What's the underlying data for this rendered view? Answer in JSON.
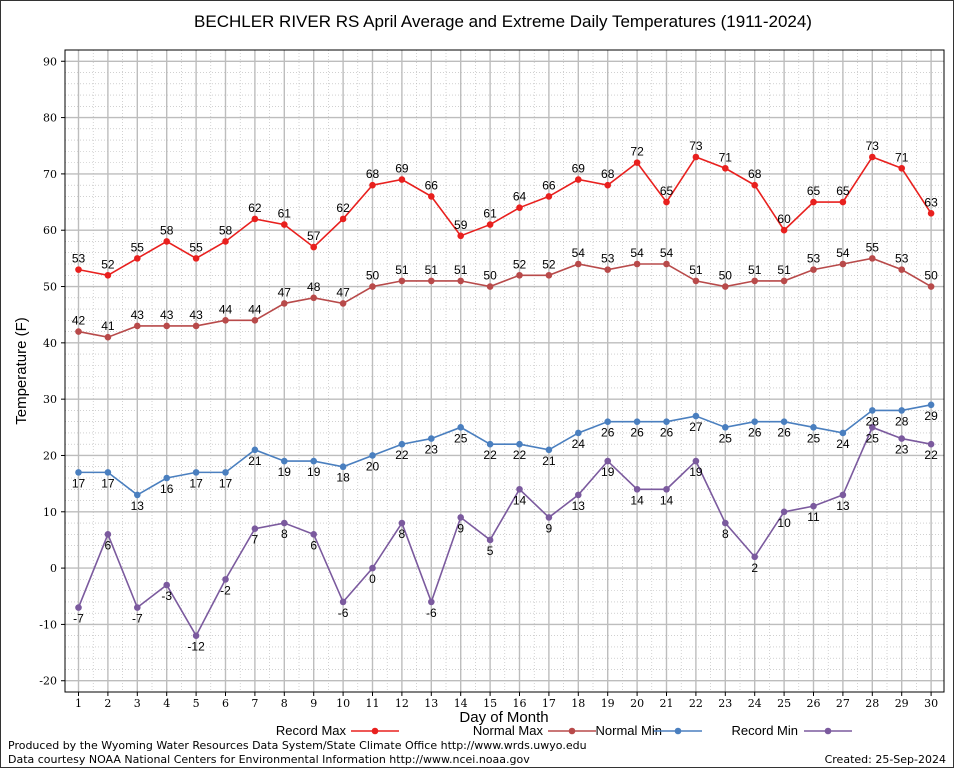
{
  "chart_data": {
    "type": "line",
    "title": "BECHLER RIVER RS April Average and Extreme Daily Temperatures (1911-2024)",
    "xlabel": "Day of Month",
    "ylabel": "Temperature (F)",
    "x": [
      1,
      2,
      3,
      4,
      5,
      6,
      7,
      8,
      9,
      10,
      11,
      12,
      13,
      14,
      15,
      16,
      17,
      18,
      19,
      20,
      21,
      22,
      23,
      24,
      25,
      26,
      27,
      28,
      29,
      30
    ],
    "ylim": [
      -22,
      92
    ],
    "yticks": [
      -20,
      -10,
      0,
      10,
      20,
      30,
      40,
      50,
      60,
      70,
      80,
      90
    ],
    "grid": true,
    "legend_position": "bottom",
    "series": [
      {
        "name": "Record Max",
        "color": "#e8201e",
        "values": [
          53,
          52,
          55,
          58,
          55,
          58,
          62,
          61,
          57,
          62,
          68,
          69,
          66,
          59,
          61,
          64,
          66,
          69,
          68,
          72,
          65,
          73,
          71,
          68,
          60,
          65,
          65,
          73,
          71,
          63
        ]
      },
      {
        "name": "Normal Max",
        "color": "#b84a4a",
        "values": [
          42,
          41,
          43,
          43,
          43,
          44,
          44,
          47,
          48,
          47,
          50,
          51,
          51,
          51,
          50,
          52,
          52,
          54,
          53,
          54,
          54,
          51,
          50,
          51,
          51,
          53,
          54,
          55,
          53,
          50
        ]
      },
      {
        "name": "Normal Min",
        "color": "#4a7fbf",
        "values": [
          17,
          17,
          13,
          16,
          17,
          17,
          21,
          19,
          19,
          18,
          20,
          22,
          23,
          25,
          22,
          22,
          21,
          24,
          26,
          26,
          26,
          27,
          25,
          26,
          26,
          25,
          24,
          28,
          28,
          29
        ]
      },
      {
        "name": "Record Min",
        "color": "#7b5a9e",
        "values": [
          -7,
          6,
          -7,
          -3,
          -12,
          -2,
          7,
          8,
          6,
          -6,
          0,
          8,
          -6,
          9,
          5,
          14,
          9,
          13,
          19,
          14,
          14,
          19,
          8,
          2,
          10,
          11,
          13,
          25,
          23,
          22
        ]
      }
    ]
  },
  "footer": {
    "produced_by": "Produced by the Wyoming Water Resources Data System/State Climate Office http://www.wrds.uwyo.edu",
    "courtesy": "Data courtesy NOAA National Centers for Environmental Information http://www.ncei.noaa.gov",
    "created": "Created:  25-Sep-2024"
  }
}
